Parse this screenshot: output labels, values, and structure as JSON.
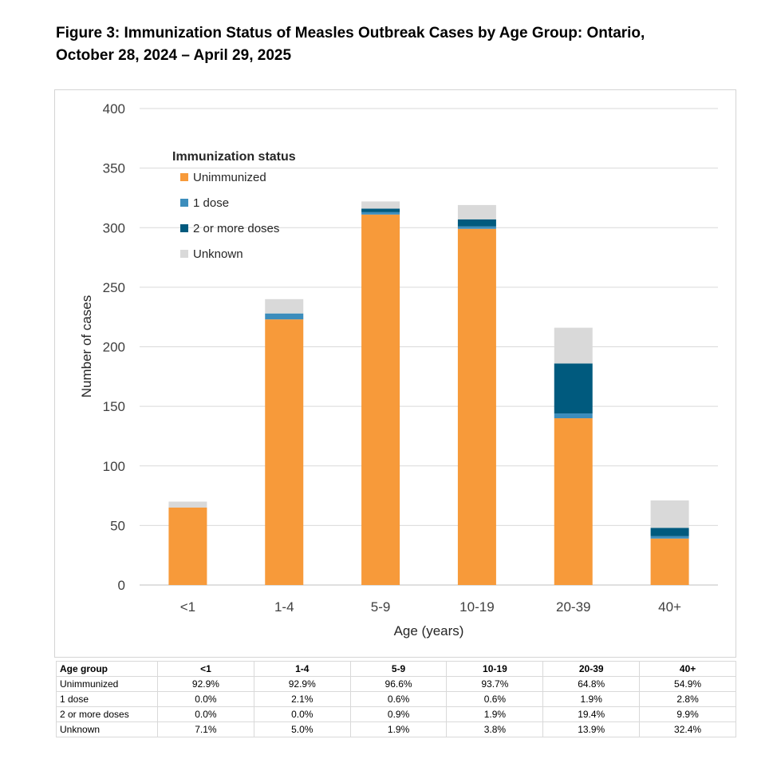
{
  "title": {
    "line1": "Figure 3: Immunization Status of Measles Outbreak Cases by Age Group: Ontario,",
    "line2": "October 28, 2024 – April 29, 2025"
  },
  "chart_data": {
    "type": "bar",
    "stacked": true,
    "categories": [
      "<1",
      "1-4",
      "5-9",
      "10-19",
      "20-39",
      "40+"
    ],
    "series": [
      {
        "name": "Unimmunized",
        "color": "#F79A3A",
        "values": [
          65,
          223,
          311,
          299,
          140,
          39
        ]
      },
      {
        "name": "1 dose",
        "color": "#3C8DBC",
        "values": [
          0,
          5,
          2,
          2,
          4,
          2
        ]
      },
      {
        "name": "2 or more doses",
        "color": "#005A7E",
        "values": [
          0,
          0,
          3,
          6,
          42,
          7
        ]
      },
      {
        "name": "Unknown",
        "color": "#D9D9D9",
        "values": [
          5,
          12,
          6,
          12,
          30,
          23
        ]
      }
    ],
    "xlabel": "Age (years)",
    "ylabel": "Number of cases",
    "ylim": [
      0,
      400
    ],
    "yticks": [
      0,
      50,
      100,
      150,
      200,
      250,
      300,
      350,
      400
    ],
    "grid": true,
    "legend_title": "Immunization status",
    "legend_placement": "top-left"
  },
  "table": {
    "header": [
      "Age group",
      "<1",
      "1-4",
      "5-9",
      "10-19",
      "20-39",
      "40+"
    ],
    "rows": [
      [
        "Unimmunized",
        "92.9%",
        "92.9%",
        "96.6%",
        "93.7%",
        "64.8%",
        "54.9%"
      ],
      [
        "1 dose",
        "0.0%",
        "2.1%",
        "0.6%",
        "0.6%",
        "1.9%",
        "2.8%"
      ],
      [
        "2 or more doses",
        "0.0%",
        "0.0%",
        "0.9%",
        "1.9%",
        "19.4%",
        "9.9%"
      ],
      [
        "Unknown",
        "7.1%",
        "5.0%",
        "1.9%",
        "3.8%",
        "13.9%",
        "32.4%"
      ]
    ]
  }
}
